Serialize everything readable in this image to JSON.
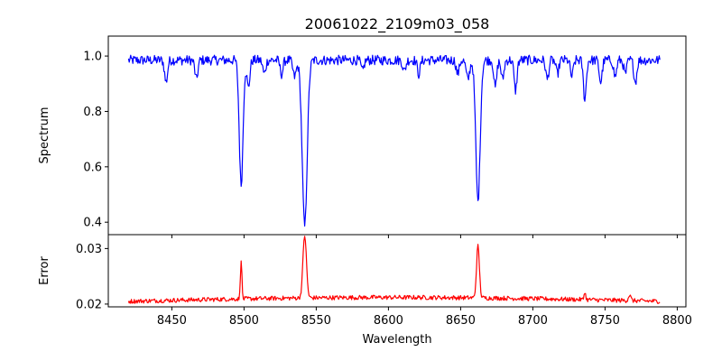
{
  "chart_data": [
    {
      "type": "line",
      "title": "20061022_2109m03_058",
      "xlabel": "",
      "ylabel": "Spectrum",
      "xlim": [
        8406,
        8806
      ],
      "ylim": [
        0.355,
        1.072
      ],
      "xticks": [
        8450,
        8500,
        8550,
        8600,
        8650,
        8700,
        8750,
        8800
      ],
      "yticks": [
        0.4,
        0.6,
        0.8,
        1.0
      ],
      "ytick_labels": [
        "0.4",
        "0.6",
        "0.8",
        "1.0"
      ],
      "grid": false,
      "color": "#0000ff",
      "x_range": [
        8420,
        8788
      ],
      "continuum": 0.985,
      "absorption_lines": [
        {
          "center": 8498.0,
          "depth": 0.45,
          "width": 1.3
        },
        {
          "center": 8542.0,
          "depth": 0.6,
          "width": 1.7
        },
        {
          "center": 8662.0,
          "depth": 0.51,
          "width": 1.5
        },
        {
          "center": 8446.0,
          "depth": 0.08,
          "width": 1.0
        },
        {
          "center": 8467.0,
          "depth": 0.07,
          "width": 1.0
        },
        {
          "center": 8503.0,
          "depth": 0.1,
          "width": 1.0
        },
        {
          "center": 8514.0,
          "depth": 0.05,
          "width": 1.0
        },
        {
          "center": 8526.0,
          "depth": 0.05,
          "width": 1.0
        },
        {
          "center": 8535.0,
          "depth": 0.06,
          "width": 1.2
        },
        {
          "center": 8582.0,
          "depth": 0.04,
          "width": 1.0
        },
        {
          "center": 8611.0,
          "depth": 0.04,
          "width": 1.0
        },
        {
          "center": 8621.0,
          "depth": 0.05,
          "width": 1.0
        },
        {
          "center": 8648.0,
          "depth": 0.05,
          "width": 1.0
        },
        {
          "center": 8655.0,
          "depth": 0.07,
          "width": 1.2
        },
        {
          "center": 8674.0,
          "depth": 0.1,
          "width": 1.0
        },
        {
          "center": 8679.0,
          "depth": 0.07,
          "width": 1.0
        },
        {
          "center": 8688.0,
          "depth": 0.11,
          "width": 1.0
        },
        {
          "center": 8710.0,
          "depth": 0.07,
          "width": 1.0
        },
        {
          "center": 8717.0,
          "depth": 0.05,
          "width": 1.0
        },
        {
          "center": 8727.0,
          "depth": 0.06,
          "width": 1.0
        },
        {
          "center": 8736.0,
          "depth": 0.14,
          "width": 1.0
        },
        {
          "center": 8747.0,
          "depth": 0.08,
          "width": 1.0
        },
        {
          "center": 8757.0,
          "depth": 0.06,
          "width": 1.0
        },
        {
          "center": 8764.0,
          "depth": 0.05,
          "width": 1.0
        },
        {
          "center": 8771.0,
          "depth": 0.08,
          "width": 1.0
        }
      ],
      "noise_amplitude": 0.018
    },
    {
      "type": "line",
      "title": "",
      "xlabel": "Wavelength",
      "ylabel": "Error",
      "xlim": [
        8406,
        8806
      ],
      "ylim": [
        0.0195,
        0.0325
      ],
      "xticks": [
        8450,
        8500,
        8550,
        8600,
        8650,
        8700,
        8750,
        8800
      ],
      "xtick_labels": [
        "8450",
        "8500",
        "8550",
        "8600",
        "8650",
        "8700",
        "8750",
        "8800"
      ],
      "yticks": [
        0.02,
        0.03
      ],
      "ytick_labels": [
        "0.02",
        "0.03"
      ],
      "grid": false,
      "color": "#ff0000",
      "x_range": [
        8420,
        8788
      ],
      "baseline": 0.0205,
      "emission_peaks": [
        {
          "center": 8498.0,
          "height": 0.0072,
          "width": 0.5
        },
        {
          "center": 8542.0,
          "height": 0.0113,
          "width": 1.2
        },
        {
          "center": 8662.0,
          "height": 0.0093,
          "width": 1.0
        },
        {
          "center": 8736.0,
          "height": 0.0015,
          "width": 0.5
        },
        {
          "center": 8767.0,
          "height": 0.001,
          "width": 0.8
        }
      ],
      "noise_amplitude": 0.0004
    }
  ]
}
